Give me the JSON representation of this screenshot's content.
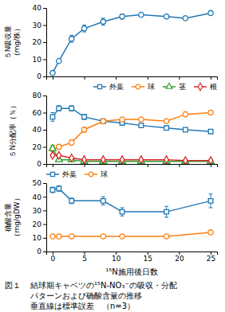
{
  "chart_data": [
    {
      "type": "line",
      "x": [
        0,
        1,
        3,
        5,
        8,
        11,
        14,
        18,
        21,
        25
      ],
      "xlim": [
        -1,
        26
      ],
      "xticks": [
        0,
        5,
        10,
        15,
        20,
        25
      ],
      "ylim": [
        0,
        40
      ],
      "yticks": [
        0,
        10,
        20,
        30,
        40
      ],
      "ylabel": [
        "５N吸収量",
        "（mg/株）"
      ],
      "tick_labels": "y",
      "grid": false,
      "series": [
        {
          "values": [
            2,
            9,
            22,
            28,
            32,
            35,
            36,
            35,
            34,
            37
          ],
          "yerr": [
            0.3,
            0.5,
            2.0,
            2.0,
            2.0,
            1.5,
            1.0,
            1.0,
            1.0,
            1.0
          ],
          "marker": "circle",
          "line_style": "solid"
        }
      ]
    },
    {
      "type": "line",
      "x": [
        0,
        1,
        3,
        5,
        8,
        11,
        14,
        18,
        21,
        25
      ],
      "xlim": [
        -1,
        26
      ],
      "xticks": [
        0,
        5,
        10,
        15,
        20,
        25
      ],
      "ylim": [
        0,
        80
      ],
      "yticks": [
        0,
        20,
        40,
        60,
        80
      ],
      "ylabel": "５N分配率（％）",
      "tick_labels": "y",
      "grid": false,
      "legend": "upper right",
      "series": [
        {
          "name": "外葉",
          "values": [
            55,
            65,
            65,
            55,
            50,
            48,
            45,
            42,
            40,
            38
          ],
          "yerr": [
            5,
            3,
            3,
            3,
            2,
            2,
            2,
            2,
            2,
            2
          ],
          "marker": "square",
          "line_style": "solid"
        },
        {
          "name": "球",
          "values": [
            17,
            20,
            25,
            40,
            50,
            52,
            52,
            50,
            58,
            60
          ],
          "yerr": [
            5,
            3,
            3,
            3,
            2,
            2,
            2,
            2,
            3,
            2
          ],
          "marker": "circle",
          "line_style": "solid"
        },
        {
          "name": "茎",
          "values": [
            18,
            5,
            5,
            3,
            3,
            3,
            3,
            3,
            3,
            3
          ],
          "yerr": [
            3,
            1,
            1,
            1,
            1,
            1,
            1,
            1,
            1,
            1
          ],
          "marker": "triangle",
          "line_style": "solid"
        },
        {
          "name": "根",
          "values": [
            10,
            10,
            7,
            5,
            5,
            5,
            5,
            5,
            4,
            4
          ],
          "yerr": [
            2,
            1,
            1,
            1,
            1,
            1,
            1,
            1,
            1,
            1
          ],
          "marker": "diamond",
          "line_style": "solid"
        }
      ]
    },
    {
      "type": "line",
      "x": [
        0,
        1,
        3,
        8,
        11,
        18,
        25
      ],
      "xlim": [
        -1,
        26
      ],
      "xticks": [
        0,
        5,
        10,
        15,
        20,
        25
      ],
      "ylim": [
        0,
        50
      ],
      "yticks": [
        0,
        10,
        20,
        30,
        40,
        50
      ],
      "ylabel": [
        "确酸含量",
        "（mg/gDW）"
      ],
      "xlabel": "¹⁵N施用後日数",
      "grid": false,
      "legend": "upper left",
      "series": [
        {
          "name": "外葉",
          "values": [
            45,
            46,
            37,
            37,
            29,
            29,
            37
          ],
          "yerr": [
            2,
            2,
            2,
            3,
            3,
            4,
            5
          ],
          "marker": "square",
          "line_style": "solid"
        },
        {
          "name": "球",
          "values": [
            11,
            11,
            11,
            11,
            11,
            11,
            14
          ],
          "yerr": [
            1,
            1,
            1,
            1,
            1,
            1,
            1
          ],
          "marker": "circle",
          "line_style": "solid"
        }
      ],
      "annotations": [
        "図１",
        "結球期キャベツの¹⁵N-NO₃⁻の吸収・分配",
        "パターンおよび确酸含量の推移",
        "垂直線は標準誤差　（n=3）"
      ]
    }
  ]
}
